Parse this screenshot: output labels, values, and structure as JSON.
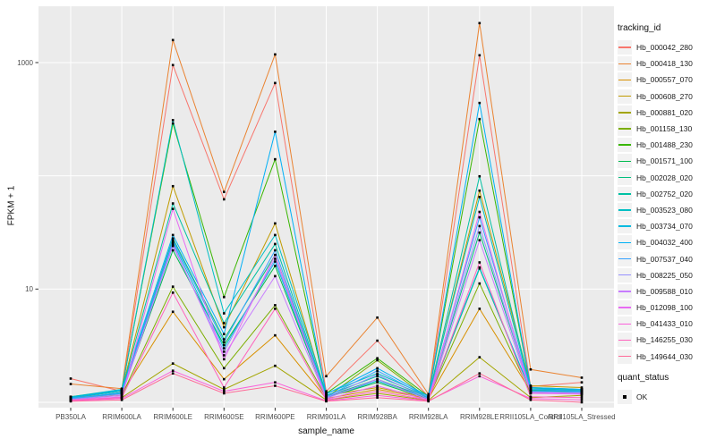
{
  "chart_data": {
    "type": "line",
    "title": "",
    "xlabel": "sample_name",
    "ylabel": "FPKM + 1",
    "y_scale": "log10",
    "ylim": [
      1,
      3200
    ],
    "grid": "major gridlines white on grey panel",
    "legend_position": "right",
    "panel_bg": "#EBEBEB",
    "grid_color": "#FFFFFF",
    "tick_color": "#333333",
    "tick_label_color": "#4D4D4D",
    "point_color": "#000000",
    "y_ticks": [
      {
        "value": 1000,
        "label": "1000"
      },
      {
        "value": 10,
        "label": "10"
      }
    ],
    "y_gridline_values": [
      1,
      10,
      100,
      1000
    ],
    "x_categories": [
      "PB350LA",
      "RRIM600LA",
      "RRIM600LE",
      "RRIM600SE",
      "RRIM600PE",
      "RRIM901LA",
      "RRIM928BA",
      "RRIM928LA",
      "RRIM928LE",
      "RRII105LA_Control",
      "RRII105LA_Stressed"
    ],
    "series": [
      {
        "name": "Hb_000042_280",
        "color": "#F8766D",
        "values": [
          1.62,
          1.25,
          950,
          62,
          660,
          1.25,
          3.5,
          1.12,
          1160,
          1.38,
          1.5
        ]
      },
      {
        "name": "Hb_000418_130",
        "color": "#EA8331",
        "values": [
          1.45,
          1.32,
          1580,
          72,
          1180,
          1.7,
          5.6,
          1.18,
          2230,
          1.95,
          1.65
        ]
      },
      {
        "name": "Hb_000557_070",
        "color": "#D89000",
        "values": [
          1.1,
          1.2,
          6.3,
          1.6,
          3.9,
          1.08,
          1.3,
          1.08,
          6.7,
          1.25,
          1.3
        ]
      },
      {
        "name": "Hb_000608_270",
        "color": "#C09B00",
        "values": [
          1.12,
          1.28,
          81,
          4.6,
          38,
          1.15,
          1.35,
          1.1,
          74,
          1.4,
          1.35
        ]
      },
      {
        "name": "Hb_000881_020",
        "color": "#A3A500",
        "values": [
          1.05,
          1.1,
          2.2,
          1.3,
          2.1,
          1.05,
          1.2,
          1.04,
          2.5,
          1.1,
          1.15
        ]
      },
      {
        "name": "Hb_001158_130",
        "color": "#7CAE00",
        "values": [
          1.08,
          1.15,
          10.5,
          2.0,
          7.2,
          1.1,
          2.35,
          1.08,
          11.2,
          1.2,
          1.25
        ]
      },
      {
        "name": "Hb_001488_230",
        "color": "#39B600",
        "values": [
          1.1,
          1.3,
          290,
          8.5,
          140,
          1.2,
          2.45,
          1.13,
          317,
          1.35,
          1.3
        ]
      },
      {
        "name": "Hb_001571_100",
        "color": "#00BB4E",
        "values": [
          1.05,
          1.2,
          22,
          3.2,
          16,
          1.1,
          1.5,
          1.07,
          15.2,
          1.25,
          1.2
        ]
      },
      {
        "name": "Hb_002028_020",
        "color": "#00BF7D",
        "values": [
          1.07,
          1.22,
          28,
          3.6,
          20,
          1.12,
          1.6,
          1.09,
          31.5,
          1.28,
          1.25
        ]
      },
      {
        "name": "Hb_002752_020",
        "color": "#00C1A3",
        "values": [
          1.1,
          1.25,
          57,
          5.0,
          25,
          1.15,
          1.7,
          1.11,
          99,
          1.3,
          1.28
        ]
      },
      {
        "name": "Hb_003523_080",
        "color": "#00BFC4",
        "values": [
          1.12,
          1.3,
          310,
          6.1,
          30,
          1.2,
          1.8,
          1.14,
          65,
          1.32,
          1.3
        ]
      },
      {
        "name": "Hb_003734_070",
        "color": "#00BAE0",
        "values": [
          1.08,
          1.2,
          26,
          3.0,
          17.5,
          1.1,
          1.55,
          1.09,
          15.5,
          1.26,
          1.24
        ]
      },
      {
        "name": "Hb_004032_400",
        "color": "#00B0F6",
        "values": [
          1.1,
          1.28,
          30,
          4.0,
          245,
          1.18,
          2.0,
          1.13,
          440,
          1.35,
          1.3
        ]
      },
      {
        "name": "Hb_007537_040",
        "color": "#35A2FF",
        "values": [
          1.08,
          1.22,
          27,
          3.4,
          22,
          1.12,
          1.9,
          1.1,
          43,
          1.3,
          1.26
        ]
      },
      {
        "name": "Hb_008225_050",
        "color": "#9590FF",
        "values": [
          1.06,
          1.18,
          24,
          2.8,
          18.5,
          1.1,
          1.75,
          1.07,
          36,
          1.24,
          1.22
        ]
      },
      {
        "name": "Hb_009588_010",
        "color": "#C77CFF",
        "values": [
          1.05,
          1.15,
          25,
          2.6,
          13,
          1.08,
          1.6,
          1.05,
          27,
          1.22,
          1.2
        ]
      },
      {
        "name": "Hb_012098_100",
        "color": "#E76BF3",
        "values": [
          1.04,
          1.12,
          51,
          2.4,
          20,
          1.06,
          1.4,
          1.04,
          48,
          1.2,
          1.18
        ]
      },
      {
        "name": "Hb_041433_010",
        "color": "#FA62DB",
        "values": [
          1.03,
          1.08,
          1.9,
          1.25,
          1.5,
          1.03,
          1.15,
          1.03,
          1.7,
          1.08,
          1.05
        ]
      },
      {
        "name": "Hb_146255_030",
        "color": "#FF62BC",
        "values": [
          1.05,
          1.1,
          9.3,
          1.35,
          6.7,
          1.05,
          1.25,
          1.05,
          17.2,
          1.12,
          1.1
        ]
      },
      {
        "name": "Hb_149644_030",
        "color": "#FF6A98",
        "values": [
          1.02,
          1.05,
          1.8,
          1.2,
          1.4,
          1.02,
          1.1,
          1.02,
          1.8,
          1.05,
          1.0
        ]
      }
    ]
  },
  "axis": {
    "x_title": "sample_name",
    "y_title": "FPKM + 1"
  },
  "legend": {
    "tracking_title": "tracking_id",
    "quant_title": "quant_status",
    "quant_items": [
      {
        "label": "OK"
      }
    ]
  }
}
